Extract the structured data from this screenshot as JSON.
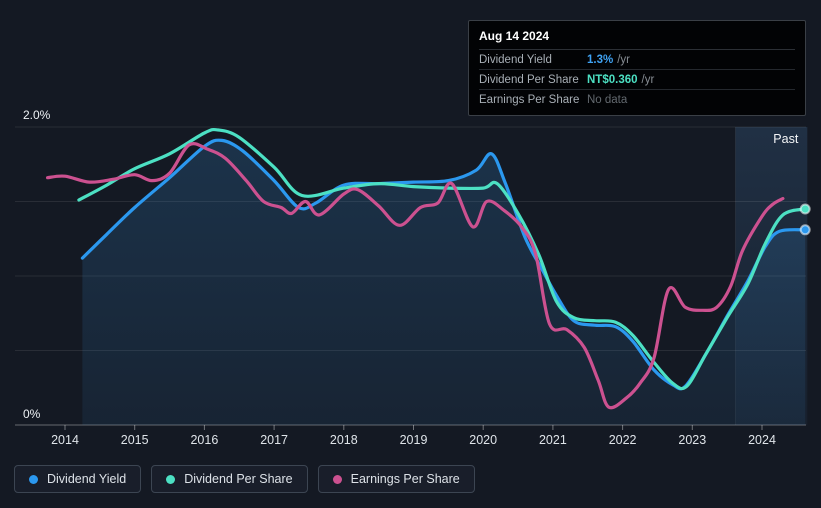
{
  "tooltip": {
    "date": "Aug 14 2024",
    "rows": [
      {
        "label": "Dividend Yield",
        "value": "1.3%",
        "suffix": "/yr",
        "value_color": "#3fa2f3"
      },
      {
        "label": "Dividend Per Share",
        "value": "NT$0.360",
        "suffix": "/yr",
        "value_color": "#4ce0c3"
      },
      {
        "label": "Earnings Per Share",
        "value": "No data",
        "suffix": "",
        "value_color": "#63696f"
      }
    ]
  },
  "chart_data": {
    "type": "line",
    "x_ticks": [
      2014,
      2015,
      2016,
      2017,
      2018,
      2019,
      2020,
      2021,
      2022,
      2023,
      2024
    ],
    "x_range": [
      2013.6,
      2024.65
    ],
    "y_axis": {
      "min": 0,
      "max": 2.0,
      "unit": "%",
      "gridline_values": [
        0,
        0.5,
        1.0,
        1.5,
        2.0
      ],
      "shown_labels": [
        {
          "value": 2.0,
          "text": "2.0%"
        },
        {
          "value": 0,
          "text": "0%"
        }
      ]
    },
    "past_region": {
      "label": "Past",
      "x_start": 2023.62,
      "x_end": 2024.65
    },
    "series": [
      {
        "id": "dividend-yield",
        "name": "Dividend Yield",
        "color": "#2b98ef",
        "area": true,
        "end_dot": true,
        "points": [
          [
            2014.25,
            1.12
          ],
          [
            2014.6,
            1.28
          ],
          [
            2015.0,
            1.46
          ],
          [
            2015.5,
            1.66
          ],
          [
            2016.0,
            1.87
          ],
          [
            2016.25,
            1.91
          ],
          [
            2016.55,
            1.84
          ],
          [
            2017.0,
            1.64
          ],
          [
            2017.35,
            1.46
          ],
          [
            2017.6,
            1.49
          ],
          [
            2018.0,
            1.61
          ],
          [
            2018.5,
            1.62
          ],
          [
            2019.0,
            1.63
          ],
          [
            2019.5,
            1.64
          ],
          [
            2019.9,
            1.71
          ],
          [
            2020.12,
            1.82
          ],
          [
            2020.32,
            1.62
          ],
          [
            2020.6,
            1.26
          ],
          [
            2020.85,
            1.04
          ],
          [
            2021.05,
            0.87
          ],
          [
            2021.3,
            0.7
          ],
          [
            2021.6,
            0.67
          ],
          [
            2021.9,
            0.66
          ],
          [
            2022.15,
            0.56
          ],
          [
            2022.45,
            0.37
          ],
          [
            2022.72,
            0.27
          ],
          [
            2022.9,
            0.26
          ],
          [
            2023.2,
            0.48
          ],
          [
            2023.5,
            0.73
          ],
          [
            2023.8,
            0.97
          ],
          [
            2024.05,
            1.2
          ],
          [
            2024.25,
            1.3
          ],
          [
            2024.62,
            1.31
          ]
        ]
      },
      {
        "id": "dividend-per-share",
        "name": "Dividend Per Share",
        "color": "#4ce0c3",
        "area": false,
        "end_dot": true,
        "points": [
          [
            2014.2,
            1.51
          ],
          [
            2014.6,
            1.61
          ],
          [
            2015.0,
            1.72
          ],
          [
            2015.5,
            1.82
          ],
          [
            2016.0,
            1.96
          ],
          [
            2016.2,
            1.98
          ],
          [
            2016.5,
            1.93
          ],
          [
            2017.0,
            1.73
          ],
          [
            2017.4,
            1.54
          ],
          [
            2018.0,
            1.59
          ],
          [
            2018.5,
            1.62
          ],
          [
            2019.0,
            1.6
          ],
          [
            2019.5,
            1.59
          ],
          [
            2020.0,
            1.59
          ],
          [
            2020.2,
            1.62
          ],
          [
            2020.5,
            1.42
          ],
          [
            2020.8,
            1.14
          ],
          [
            2021.05,
            0.83
          ],
          [
            2021.3,
            0.72
          ],
          [
            2021.6,
            0.7
          ],
          [
            2021.9,
            0.69
          ],
          [
            2022.15,
            0.6
          ],
          [
            2022.45,
            0.42
          ],
          [
            2022.72,
            0.28
          ],
          [
            2022.92,
            0.26
          ],
          [
            2023.2,
            0.48
          ],
          [
            2023.5,
            0.72
          ],
          [
            2023.8,
            0.95
          ],
          [
            2024.05,
            1.22
          ],
          [
            2024.3,
            1.41
          ],
          [
            2024.62,
            1.45
          ]
        ]
      },
      {
        "id": "earnings-per-share",
        "name": "Earnings Per Share",
        "color": "#cc5190",
        "area": false,
        "end_dot": false,
        "points": [
          [
            2013.75,
            1.66
          ],
          [
            2014.0,
            1.67
          ],
          [
            2014.35,
            1.63
          ],
          [
            2014.7,
            1.65
          ],
          [
            2015.0,
            1.68
          ],
          [
            2015.25,
            1.64
          ],
          [
            2015.5,
            1.69
          ],
          [
            2015.78,
            1.88
          ],
          [
            2016.05,
            1.85
          ],
          [
            2016.3,
            1.79
          ],
          [
            2016.6,
            1.64
          ],
          [
            2016.85,
            1.5
          ],
          [
            2017.1,
            1.46
          ],
          [
            2017.25,
            1.42
          ],
          [
            2017.45,
            1.5
          ],
          [
            2017.65,
            1.41
          ],
          [
            2018.0,
            1.55
          ],
          [
            2018.2,
            1.58
          ],
          [
            2018.5,
            1.47
          ],
          [
            2018.8,
            1.34
          ],
          [
            2019.1,
            1.46
          ],
          [
            2019.35,
            1.49
          ],
          [
            2019.55,
            1.62
          ],
          [
            2019.85,
            1.33
          ],
          [
            2020.05,
            1.5
          ],
          [
            2020.3,
            1.44
          ],
          [
            2020.55,
            1.33
          ],
          [
            2020.75,
            1.15
          ],
          [
            2020.95,
            0.68
          ],
          [
            2021.2,
            0.64
          ],
          [
            2021.45,
            0.52
          ],
          [
            2021.65,
            0.3
          ],
          [
            2021.8,
            0.12
          ],
          [
            2022.05,
            0.18
          ],
          [
            2022.25,
            0.28
          ],
          [
            2022.45,
            0.45
          ],
          [
            2022.66,
            0.91
          ],
          [
            2022.9,
            0.79
          ],
          [
            2023.15,
            0.77
          ],
          [
            2023.35,
            0.79
          ],
          [
            2023.55,
            0.93
          ],
          [
            2023.72,
            1.17
          ],
          [
            2024.0,
            1.4
          ],
          [
            2024.15,
            1.48
          ],
          [
            2024.3,
            1.52
          ]
        ]
      }
    ]
  },
  "legend": {
    "items": [
      {
        "label": "Dividend Yield",
        "color": "#2b98ef"
      },
      {
        "label": "Dividend Per Share",
        "color": "#4ce0c3"
      },
      {
        "label": "Earnings Per Share",
        "color": "#cc5190"
      }
    ]
  },
  "colors": {
    "background": "#141923",
    "grid": "rgba(255,255,255,0.09)",
    "axis": "rgba(255,255,255,0.35)",
    "area_fill": "#3484c6",
    "past_band": "#5aa0e6"
  }
}
